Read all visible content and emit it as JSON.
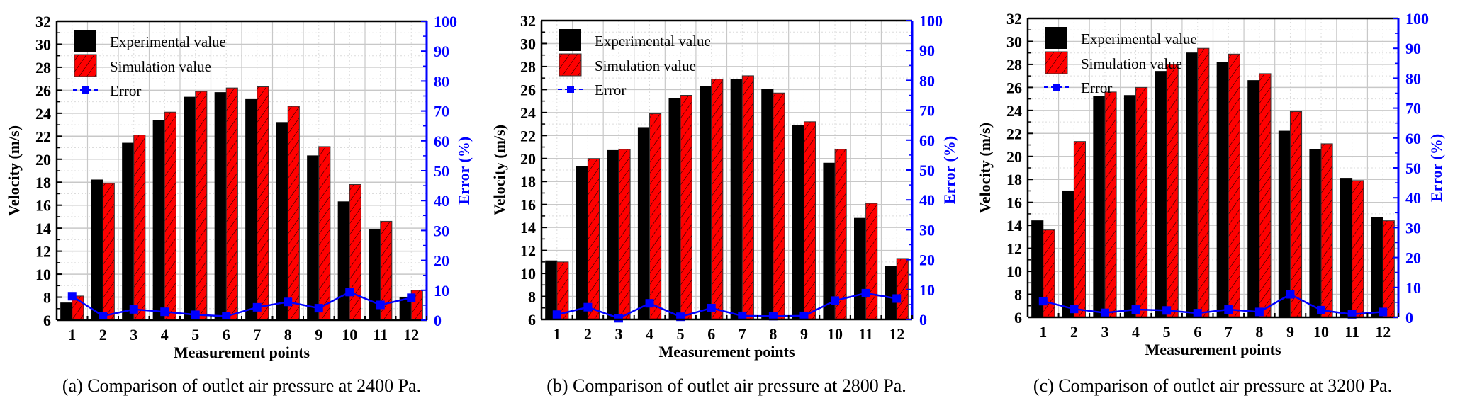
{
  "colors": {
    "experimental": "#000000",
    "simulation": "#ff0000",
    "error": "#0000ff",
    "grid_major": "#c8c8c8",
    "grid_minor": "#dcdcdc"
  },
  "chart_data": [
    {
      "type": "bar",
      "panel": "a",
      "caption": "(a) Comparison of outlet air pressure at 2400 Pa.",
      "xlabel": "Measurement points",
      "ylabel": "Velocity (m/s)",
      "y2label": "Error (%)",
      "categories": [
        "1",
        "2",
        "3",
        "4",
        "5",
        "6",
        "7",
        "8",
        "9",
        "10",
        "11",
        "12"
      ],
      "ylim": [
        6,
        32
      ],
      "yticks": [
        "6",
        "8",
        "10",
        "12",
        "14",
        "16",
        "18",
        "20",
        "22",
        "24",
        "26",
        "28",
        "30",
        "32"
      ],
      "y2lim": [
        0,
        100
      ],
      "y2ticks": [
        "0",
        "10",
        "20",
        "30",
        "40",
        "50",
        "60",
        "70",
        "80",
        "90",
        "100"
      ],
      "grid": true,
      "legend": {
        "position": "top-left",
        "entries": [
          "Experimental value",
          "Simulation value",
          "Error"
        ]
      },
      "series": [
        {
          "name": "Experimental value",
          "type": "bar",
          "values": [
            7.5,
            18.2,
            21.4,
            23.4,
            25.4,
            25.8,
            25.2,
            23.2,
            20.3,
            16.3,
            13.9,
            8.0
          ]
        },
        {
          "name": "Simulation value",
          "type": "bar",
          "values": [
            8.1,
            17.9,
            22.1,
            24.1,
            25.9,
            26.2,
            26.3,
            24.6,
            21.1,
            17.8,
            14.6,
            8.6
          ]
        },
        {
          "name": "Error",
          "type": "line",
          "axis": "right",
          "values": [
            8.0,
            1.4,
            3.6,
            2.8,
            1.8,
            1.3,
            4.3,
            6.1,
            4.0,
            9.4,
            5.1,
            7.5
          ]
        }
      ]
    },
    {
      "type": "bar",
      "panel": "b",
      "caption": "(b) Comparison of outlet air pressure at 2800 Pa.",
      "xlabel": "Measurement points",
      "ylabel": "Velocity (m/s)",
      "y2label": "Error (%)",
      "categories": [
        "1",
        "2",
        "3",
        "4",
        "5",
        "6",
        "7",
        "8",
        "9",
        "10",
        "11",
        "12"
      ],
      "ylim": [
        6,
        32
      ],
      "yticks": [
        "6",
        "8",
        "10",
        "12",
        "14",
        "16",
        "18",
        "20",
        "22",
        "24",
        "26",
        "28",
        "30",
        "32"
      ],
      "y2lim": [
        0,
        100
      ],
      "y2ticks": [
        "0",
        "10",
        "20",
        "30",
        "40",
        "50",
        "60",
        "70",
        "80",
        "90",
        "100"
      ],
      "grid": true,
      "legend": {
        "position": "top-left",
        "entries": [
          "Experimental value",
          "Simulation value",
          "Error"
        ]
      },
      "series": [
        {
          "name": "Experimental value",
          "type": "bar",
          "values": [
            11.1,
            19.3,
            20.7,
            22.7,
            25.2,
            26.3,
            26.9,
            26.0,
            22.9,
            19.6,
            14.8,
            10.6
          ]
        },
        {
          "name": "Simulation value",
          "type": "bar",
          "values": [
            11.0,
            20.0,
            20.8,
            23.9,
            25.5,
            26.9,
            27.2,
            25.7,
            23.2,
            20.8,
            16.1,
            11.3
          ]
        },
        {
          "name": "Error",
          "type": "line",
          "axis": "right",
          "values": [
            1.6,
            4.1,
            0.4,
            5.4,
            0.9,
            3.8,
            1.2,
            1.1,
            1.2,
            6.3,
            8.8,
            7.0
          ]
        }
      ]
    },
    {
      "type": "bar",
      "panel": "c",
      "caption": "(c) Comparison of outlet air pressure at 3200 Pa.",
      "xlabel": "Measurement points",
      "ylabel": "Velocity (m/s)",
      "y2label": "Error (%)",
      "categories": [
        "1",
        "2",
        "3",
        "4",
        "5",
        "6",
        "7",
        "8",
        "9",
        "10",
        "11",
        "12"
      ],
      "ylim": [
        6,
        32
      ],
      "yticks": [
        "6",
        "8",
        "10",
        "12",
        "14",
        "16",
        "18",
        "20",
        "22",
        "24",
        "26",
        "28",
        "30",
        "32"
      ],
      "y2lim": [
        0,
        100
      ],
      "y2ticks": [
        "0",
        "10",
        "20",
        "30",
        "40",
        "50",
        "60",
        "70",
        "80",
        "90",
        "100"
      ],
      "grid": true,
      "legend": {
        "position": "top-left",
        "entries": [
          "Experimental value",
          "Simulation value",
          "Error"
        ]
      },
      "series": [
        {
          "name": "Experimental value",
          "type": "bar",
          "values": [
            14.4,
            17.0,
            25.2,
            25.3,
            27.4,
            29.0,
            28.2,
            26.6,
            22.2,
            20.6,
            18.1,
            14.7
          ]
        },
        {
          "name": "Simulation value",
          "type": "bar",
          "values": [
            13.6,
            21.3,
            25.6,
            26.0,
            28.0,
            29.4,
            28.9,
            27.2,
            23.9,
            21.1,
            17.9,
            14.4
          ]
        },
        {
          "name": "Error",
          "type": "line",
          "axis": "right",
          "values": [
            5.4,
            2.8,
            1.5,
            2.6,
            2.3,
            1.4,
            2.6,
            1.8,
            7.7,
            2.4,
            1.0,
            1.8
          ]
        }
      ]
    }
  ]
}
